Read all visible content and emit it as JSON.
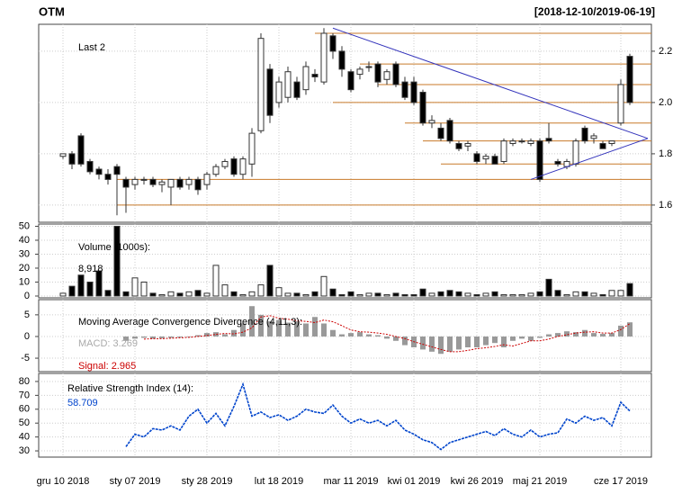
{
  "chart_data": [
    {
      "type": "candlestick",
      "title": "OTM",
      "subtitle": "[2018-12-10/2019-06-19]",
      "annotation": "Last 2",
      "categories": [
        "gru 10 2018",
        null,
        null,
        null,
        null,
        null,
        null,
        null,
        "sty 07 2019",
        null,
        null,
        null,
        null,
        null,
        null,
        null,
        "sty 28 2019",
        null,
        null,
        null,
        null,
        null,
        null,
        null,
        "lut 18 2019",
        null,
        null,
        null,
        null,
        null,
        null,
        null,
        "mar 11 2019",
        null,
        null,
        null,
        null,
        null,
        null,
        "kwi 01 2019",
        null,
        null,
        null,
        null,
        null,
        null,
        "kwi 26 2019",
        null,
        null,
        null,
        null,
        null,
        null,
        "maj 21 2019",
        null,
        null,
        null,
        null,
        null,
        null,
        null,
        null,
        "cze 17 2019",
        null
      ],
      "open": [
        1.79,
        1.8,
        1.87,
        1.77,
        1.74,
        1.72,
        1.75,
        1.7,
        1.68,
        1.7,
        1.7,
        1.68,
        1.67,
        1.7,
        1.68,
        1.7,
        1.68,
        1.72,
        1.75,
        1.78,
        1.72,
        1.76,
        1.89,
        2.13,
        2.0,
        2.02,
        2.08,
        2.05,
        2.11,
        2.08,
        2.26,
        2.2,
        2.12,
        2.11,
        2.14,
        2.15,
        2.09,
        2.15,
        2.08,
        2.08,
        2.04,
        1.92,
        1.9,
        1.93,
        1.84,
        1.83,
        1.8,
        1.78,
        1.79,
        1.77,
        1.84,
        1.85,
        1.84,
        1.85,
        1.86,
        1.77,
        1.75,
        1.76,
        1.9,
        1.86,
        1.84,
        1.84,
        1.92,
        2.18
      ],
      "high": [
        1.8,
        1.81,
        1.88,
        1.78,
        1.75,
        1.74,
        1.76,
        1.71,
        1.71,
        1.71,
        1.71,
        1.7,
        1.7,
        1.71,
        1.71,
        1.71,
        1.73,
        1.76,
        1.78,
        1.79,
        1.79,
        1.9,
        2.27,
        2.15,
        2.1,
        2.14,
        2.1,
        2.16,
        2.13,
        2.29,
        2.27,
        2.22,
        2.13,
        2.14,
        2.16,
        2.16,
        2.13,
        2.16,
        2.1,
        2.1,
        2.05,
        1.95,
        1.92,
        1.94,
        1.85,
        1.85,
        1.81,
        1.8,
        1.8,
        1.86,
        1.86,
        1.86,
        1.86,
        1.86,
        1.92,
        1.78,
        1.78,
        1.86,
        1.91,
        1.88,
        1.85,
        1.85,
        2.09,
        2.19
      ],
      "low": [
        1.78,
        1.74,
        1.75,
        1.72,
        1.7,
        1.68,
        1.56,
        1.57,
        1.66,
        1.68,
        1.67,
        1.65,
        1.6,
        1.66,
        1.66,
        1.64,
        1.66,
        1.71,
        1.74,
        1.71,
        1.7,
        1.71,
        1.88,
        1.92,
        1.98,
        2.0,
        2.01,
        2.03,
        2.08,
        2.07,
        2.17,
        2.1,
        2.04,
        2.09,
        2.12,
        2.06,
        2.07,
        2.06,
        2.01,
        1.99,
        1.91,
        1.9,
        1.85,
        1.84,
        1.81,
        1.81,
        1.76,
        1.76,
        1.76,
        1.76,
        1.83,
        1.84,
        1.83,
        1.69,
        1.84,
        1.75,
        1.74,
        1.75,
        1.84,
        1.84,
        1.82,
        1.83,
        1.91,
        1.99
      ],
      "close": [
        1.8,
        1.76,
        1.76,
        1.73,
        1.72,
        1.7,
        1.72,
        1.67,
        1.7,
        1.7,
        1.68,
        1.69,
        1.7,
        1.67,
        1.7,
        1.66,
        1.72,
        1.75,
        1.77,
        1.72,
        1.78,
        1.88,
        2.25,
        1.95,
        2.08,
        2.12,
        2.02,
        2.14,
        2.1,
        2.27,
        2.2,
        2.13,
        2.05,
        2.13,
        2.14,
        2.08,
        2.12,
        2.07,
        2.02,
        2.0,
        1.92,
        1.93,
        1.86,
        1.85,
        1.82,
        1.84,
        1.77,
        1.79,
        1.76,
        1.85,
        1.85,
        1.85,
        1.85,
        1.7,
        1.85,
        1.76,
        1.77,
        1.85,
        1.85,
        1.87,
        1.82,
        1.85,
        2.07,
        2.0
      ],
      "up_color": "#ffffff",
      "down_color": "#000000",
      "ylim": [
        1.533,
        2.305
      ],
      "yticks": [
        1.6,
        1.8,
        {
          "value": 2,
          "label": "2.0"
        },
        2.2
      ],
      "support_levels": [
        {
          "level": 2.27,
          "from": 28
        },
        {
          "level": 2.15,
          "from": 33
        },
        {
          "level": 2.07,
          "from": 35
        },
        {
          "level": 2.0,
          "from": 30
        },
        {
          "level": 1.92,
          "from": 38
        },
        {
          "level": 1.85,
          "from": 40
        },
        {
          "level": 1.76,
          "from": 42
        },
        {
          "level": 1.7,
          "from": 6
        },
        {
          "level": 1.6,
          "from": 6
        }
      ],
      "support_color": "#c87a2a",
      "trendlines": [
        {
          "x": [
            30,
            65
          ],
          "y": [
            2.29,
            1.86
          ]
        },
        {
          "x": [
            52,
            65
          ],
          "y": [
            1.7,
            1.86
          ]
        }
      ],
      "trend_color": "#3333bb",
      "grid": true
    },
    {
      "type": "volume",
      "label": "Volume (1000s):",
      "last_label": "8,918",
      "values": [
        2,
        7,
        15,
        10,
        18,
        4,
        50,
        3,
        13,
        10,
        2,
        1,
        3,
        2,
        3,
        4,
        2,
        22,
        8,
        3,
        1,
        3,
        8,
        22,
        6,
        2,
        2,
        1,
        3,
        14,
        5,
        1,
        3,
        1,
        2,
        2,
        1,
        2,
        1,
        1,
        5,
        2,
        3,
        4,
        3,
        2,
        1,
        2,
        3,
        1,
        1,
        1,
        2,
        3,
        12,
        4,
        1,
        3,
        3,
        2,
        1,
        4,
        4,
        8.918
      ],
      "ylim": [
        -1.3,
        51.6
      ],
      "yticks": [
        0,
        10,
        20,
        30,
        40,
        50
      ],
      "grid": true
    },
    {
      "type": "macd",
      "title": "Moving Average Convergence Divergence (4,11,3):",
      "macd_label": "MACD: 3.269",
      "signal_label": "Signal: 2.965",
      "macd": [
        null,
        null,
        null,
        null,
        null,
        null,
        null,
        -1,
        -0.5,
        -0.3,
        -0.5,
        -0.4,
        -0.3,
        -0.2,
        0,
        0.3,
        0.8,
        1.0,
        0.5,
        1.5,
        3,
        7,
        5,
        3.5,
        3.8,
        3.2,
        3.5,
        3,
        4.5,
        3,
        1.5,
        0.5,
        0.8,
        1,
        0.5,
        0.3,
        -0.5,
        -1,
        -2,
        -2.5,
        -3,
        -3.5,
        -4,
        -3.5,
        -3,
        -2.5,
        -2.5,
        -2,
        -1.5,
        -2.5,
        -1,
        -0.5,
        -1,
        -0.3,
        0.5,
        0.8,
        1.2,
        1.0,
        1.5,
        0.8,
        0.6,
        0.8,
        2.5,
        3.269
      ],
      "signal": [
        null,
        null,
        null,
        null,
        null,
        null,
        null,
        null,
        null,
        -0.6,
        -0.5,
        -0.5,
        -0.4,
        -0.3,
        -0.2,
        0,
        0.2,
        0.5,
        0.7,
        0.6,
        1,
        2,
        4.5,
        4.8,
        4.2,
        4,
        3.6,
        3.5,
        3.2,
        3.8,
        3.4,
        2.5,
        1.5,
        1.1,
        1,
        0.8,
        0.5,
        0,
        -0.5,
        -1.2,
        -1.8,
        -2.4,
        -3,
        -3.5,
        -3.5,
        -3.2,
        -2.8,
        -2.6,
        -2.3,
        -1.9,
        -2.2,
        -1.6,
        -1,
        -1,
        -0.6,
        0,
        0.4,
        0.8,
        1,
        1.1,
        0.8,
        0.8,
        1.6,
        2.965
      ],
      "macd_color": "#999999",
      "signal_color": "#cc0000",
      "ylim": [
        -8.1,
        8.5
      ],
      "yticks": [
        -5,
        0,
        5
      ],
      "grid": true
    },
    {
      "type": "rsi",
      "title": "Relative Strength Index (14):",
      "last_label": "58.709",
      "color": "#0044cc",
      "values": [
        null,
        null,
        null,
        null,
        null,
        null,
        null,
        33,
        42,
        40,
        46,
        45,
        48,
        45,
        55,
        60,
        50,
        57,
        48,
        62,
        78,
        55,
        58,
        54,
        56,
        52,
        55,
        60,
        58,
        57,
        63,
        55,
        50,
        53,
        50,
        52,
        48,
        52,
        45,
        42,
        38,
        36,
        31,
        36,
        38,
        40,
        42,
        44,
        41,
        46,
        42,
        40,
        45,
        40,
        42,
        43,
        53,
        50,
        55,
        52,
        54,
        48,
        65,
        58.709
      ],
      "ylim": [
        25.5,
        85.8
      ],
      "yticks": [
        30,
        40,
        50,
        60,
        70,
        80
      ],
      "grid": true
    }
  ]
}
